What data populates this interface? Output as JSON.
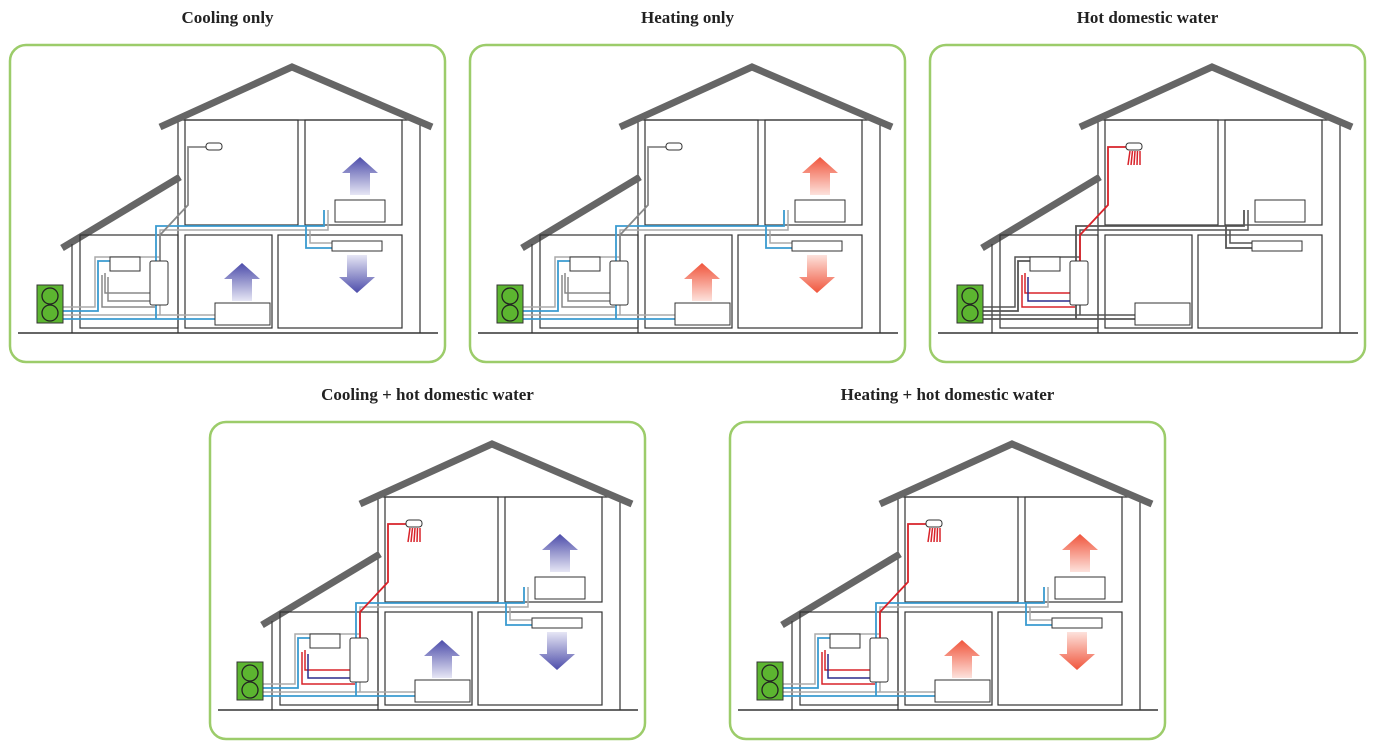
{
  "panels": [
    {
      "title": "Cooling only"
    },
    {
      "title": "Heating only"
    },
    {
      "title": "Hot domestic water"
    },
    {
      "title": "Cooling + hot domestic water"
    },
    {
      "title": "Heating + hot domestic water"
    }
  ]
}
